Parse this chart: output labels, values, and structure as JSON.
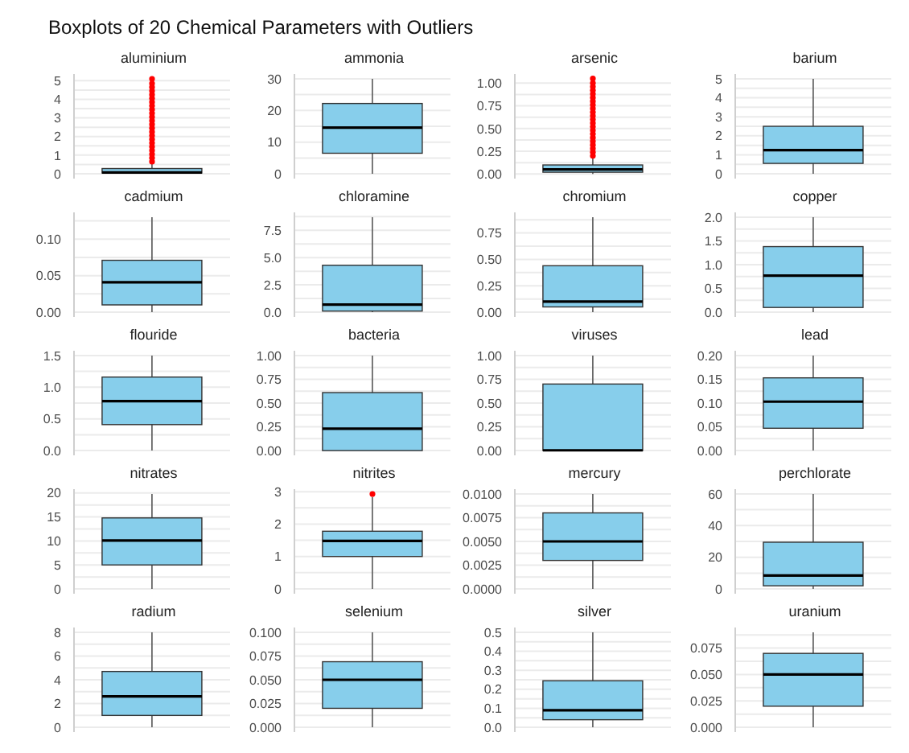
{
  "chart_data": [
    {
      "type": "other",
      "title": "Boxplots of 20 Chemical Parameters with Outliers"
    },
    {
      "type": "box",
      "title": "aluminium",
      "categories": [
        null
      ],
      "series": [
        {
          "color": "#87ceeb",
          "boxes": [
            {
              "low": 0,
              "q1": 0.04,
              "median": 0.07,
              "q3": 0.28,
              "high": 0.6,
              "outliers": [
                0.65,
                0.85,
                1.05,
                1.25,
                1.45,
                1.65,
                1.85,
                2.05,
                2.25,
                2.45,
                2.65,
                2.85,
                3.05,
                3.25,
                3.45,
                3.65,
                3.85,
                4.05,
                4.25,
                4.45,
                4.65,
                4.85,
                5.1
              ]
            }
          ]
        }
      ],
      "ylim": [
        -0.26,
        5.36
      ],
      "yticks": [
        0,
        {
          "value": 0.5,
          "label": null
        },
        1,
        {
          "value": 1.5,
          "label": null
        },
        2,
        {
          "value": 2.5,
          "label": null
        },
        3,
        {
          "value": 3.5,
          "label": null
        },
        4,
        {
          "value": 4.5,
          "label": null
        },
        5
      ],
      "grid": "y"
    },
    {
      "type": "box",
      "title": "ammonia",
      "categories": [
        null
      ],
      "series": [
        {
          "color": "#87ceeb",
          "boxes": [
            {
              "low": 0,
              "q1": 6.5,
              "median": 14.6,
              "q3": 22.2,
              "high": 30
            }
          ]
        }
      ],
      "ylim": [
        -1.5,
        31.5
      ],
      "yticks": [
        0,
        {
          "value": 5,
          "label": null
        },
        10,
        {
          "value": 15,
          "label": null
        },
        20,
        {
          "value": 25,
          "label": null
        },
        30
      ],
      "grid": "y"
    },
    {
      "type": "box",
      "title": "arsenic",
      "categories": [
        null
      ],
      "series": [
        {
          "color": "#87ceeb",
          "boxes": [
            {
              "low": 0,
              "q1": 0.02,
              "median": 0.05,
              "q3": 0.1,
              "high": 0.18,
              "outliers": [
                0.2,
                0.24,
                0.28,
                0.32,
                0.36,
                0.4,
                0.44,
                0.48,
                0.52,
                0.56,
                0.6,
                0.64,
                0.68,
                0.72,
                0.76,
                0.8,
                0.84,
                0.88,
                0.92,
                0.96,
                1.0,
                1.05
              ]
            }
          ]
        }
      ],
      "ylim": [
        -0.05,
        1.1
      ],
      "yticks": [
        {
          "value": 0,
          "label": "0.00"
        },
        {
          "value": 0.125,
          "label": null
        },
        0.25,
        {
          "value": 0.375,
          "label": null
        },
        {
          "value": 0.5,
          "label": "0.50"
        },
        {
          "value": 0.625,
          "label": null
        },
        0.75,
        {
          "value": 0.875,
          "label": null
        },
        {
          "value": 1,
          "label": "1.00"
        }
      ],
      "grid": "y"
    },
    {
      "type": "box",
      "title": "barium",
      "categories": [
        null
      ],
      "series": [
        {
          "color": "#87ceeb",
          "boxes": [
            {
              "low": 0,
              "q1": 0.55,
              "median": 1.25,
              "q3": 2.5,
              "high": 5
            }
          ]
        }
      ],
      "ylim": [
        -0.25,
        5.25
      ],
      "yticks": [
        0,
        {
          "value": 0.5,
          "label": null
        },
        1,
        {
          "value": 1.5,
          "label": null
        },
        2,
        {
          "value": 2.5,
          "label": null
        },
        3,
        {
          "value": 3.5,
          "label": null
        },
        4,
        {
          "value": 4.5,
          "label": null
        },
        5
      ],
      "grid": "y"
    },
    {
      "type": "box",
      "title": "cadmium",
      "categories": [
        null
      ],
      "series": [
        {
          "color": "#87ceeb",
          "boxes": [
            {
              "low": 0,
              "q1": 0.01,
              "median": 0.041,
              "q3": 0.071,
              "high": 0.13
            }
          ]
        }
      ],
      "ylim": [
        -0.0065,
        0.1365
      ],
      "yticks": [
        {
          "value": 0,
          "label": "0.00"
        },
        {
          "value": 0.025,
          "label": null
        },
        0.05,
        {
          "value": 0.075,
          "label": null
        },
        {
          "value": 0.1,
          "label": "0.10"
        },
        {
          "value": 0.125,
          "label": null
        }
      ],
      "grid": "y"
    },
    {
      "type": "box",
      "title": "chloramine",
      "categories": [
        null
      ],
      "series": [
        {
          "color": "#87ceeb",
          "boxes": [
            {
              "low": 0,
              "q1": 0.1,
              "median": 0.7,
              "q3": 4.3,
              "high": 8.7
            }
          ]
        }
      ],
      "ylim": [
        -0.44,
        9.14
      ],
      "yticks": [
        {
          "value": 0,
          "label": "0.0"
        },
        {
          "value": 1.25,
          "label": null
        },
        2.5,
        {
          "value": 3.75,
          "label": null
        },
        {
          "value": 5,
          "label": "5.0"
        },
        {
          "value": 6.25,
          "label": null
        },
        7.5,
        {
          "value": 8.75,
          "label": null
        }
      ],
      "grid": "y"
    },
    {
      "type": "box",
      "title": "chromium",
      "categories": [
        null
      ],
      "series": [
        {
          "color": "#87ceeb",
          "boxes": [
            {
              "low": 0,
              "q1": 0.05,
              "median": 0.1,
              "q3": 0.44,
              "high": 0.9
            }
          ]
        }
      ],
      "ylim": [
        -0.045,
        0.945
      ],
      "yticks": [
        {
          "value": 0,
          "label": "0.00"
        },
        {
          "value": 0.125,
          "label": null
        },
        0.25,
        {
          "value": 0.375,
          "label": null
        },
        {
          "value": 0.5,
          "label": "0.50"
        },
        {
          "value": 0.625,
          "label": null
        },
        0.75,
        {
          "value": 0.875,
          "label": null
        }
      ],
      "grid": "y"
    },
    {
      "type": "box",
      "title": "copper",
      "categories": [
        null
      ],
      "series": [
        {
          "color": "#87ceeb",
          "boxes": [
            {
              "low": 0,
              "q1": 0.1,
              "median": 0.77,
              "q3": 1.38,
              "high": 2.0
            }
          ]
        }
      ],
      "ylim": [
        -0.1,
        2.1
      ],
      "yticks": [
        {
          "value": 0,
          "label": "0.0"
        },
        {
          "value": 0.25,
          "label": null
        },
        0.5,
        {
          "value": 0.75,
          "label": null
        },
        {
          "value": 1,
          "label": "1.0"
        },
        {
          "value": 1.25,
          "label": null
        },
        1.5,
        {
          "value": 1.75,
          "label": null
        },
        {
          "value": 2,
          "label": "2.0"
        }
      ],
      "grid": "y"
    },
    {
      "type": "box",
      "title": "flouride",
      "categories": [
        null
      ],
      "series": [
        {
          "color": "#87ceeb",
          "boxes": [
            {
              "low": 0,
              "q1": 0.41,
              "median": 0.78,
              "q3": 1.16,
              "high": 1.5
            }
          ]
        }
      ],
      "ylim": [
        -0.075,
        1.575
      ],
      "yticks": [
        {
          "value": 0,
          "label": "0.0"
        },
        {
          "value": 0.25,
          "label": null
        },
        0.5,
        {
          "value": 0.75,
          "label": null
        },
        {
          "value": 1,
          "label": "1.0"
        },
        {
          "value": 1.25,
          "label": null
        },
        1.5
      ],
      "grid": "y"
    },
    {
      "type": "box",
      "title": "bacteria",
      "categories": [
        null
      ],
      "series": [
        {
          "color": "#87ceeb",
          "boxes": [
            {
              "low": 0,
              "q1": 0,
              "median": 0.23,
              "q3": 0.61,
              "high": 1.0
            }
          ]
        }
      ],
      "ylim": [
        -0.05,
        1.05
      ],
      "yticks": [
        {
          "value": 0,
          "label": "0.00"
        },
        {
          "value": 0.125,
          "label": null
        },
        0.25,
        {
          "value": 0.375,
          "label": null
        },
        {
          "value": 0.5,
          "label": "0.50"
        },
        {
          "value": 0.625,
          "label": null
        },
        0.75,
        {
          "value": 0.875,
          "label": null
        },
        {
          "value": 1,
          "label": "1.00"
        }
      ],
      "grid": "y"
    },
    {
      "type": "box",
      "title": "viruses",
      "categories": [
        null
      ],
      "series": [
        {
          "color": "#87ceeb",
          "boxes": [
            {
              "low": 0,
              "q1": 0,
              "median": 0.003,
              "q3": 0.7,
              "high": 1.0
            }
          ]
        }
      ],
      "ylim": [
        -0.05,
        1.05
      ],
      "yticks": [
        {
          "value": 0,
          "label": "0.00"
        },
        {
          "value": 0.125,
          "label": null
        },
        0.25,
        {
          "value": 0.375,
          "label": null
        },
        {
          "value": 0.5,
          "label": "0.50"
        },
        {
          "value": 0.625,
          "label": null
        },
        0.75,
        {
          "value": 0.875,
          "label": null
        },
        {
          "value": 1,
          "label": "1.00"
        }
      ],
      "grid": "y"
    },
    {
      "type": "box",
      "title": "lead",
      "categories": [
        null
      ],
      "series": [
        {
          "color": "#87ceeb",
          "boxes": [
            {
              "low": 0,
              "q1": 0.047,
              "median": 0.103,
              "q3": 0.153,
              "high": 0.2
            }
          ]
        }
      ],
      "ylim": [
        -0.01,
        0.21
      ],
      "yticks": [
        {
          "value": 0,
          "label": "0.00"
        },
        {
          "value": 0.025,
          "label": null
        },
        0.05,
        {
          "value": 0.075,
          "label": null
        },
        {
          "value": 0.1,
          "label": "0.10"
        },
        {
          "value": 0.125,
          "label": null
        },
        0.15,
        {
          "value": 0.175,
          "label": null
        },
        {
          "value": 0.2,
          "label": "0.20"
        }
      ],
      "grid": "y"
    },
    {
      "type": "box",
      "title": "nitrates",
      "categories": [
        null
      ],
      "series": [
        {
          "color": "#87ceeb",
          "boxes": [
            {
              "low": 0,
              "q1": 5,
              "median": 10.1,
              "q3": 14.8,
              "high": 19.8
            }
          ]
        }
      ],
      "ylim": [
        -1,
        20.8
      ],
      "yticks": [
        0,
        {
          "value": 2.5,
          "label": null
        },
        5,
        {
          "value": 7.5,
          "label": null
        },
        10,
        {
          "value": 12.5,
          "label": null
        },
        15,
        {
          "value": 17.5,
          "label": null
        },
        20
      ],
      "grid": "y"
    },
    {
      "type": "box",
      "title": "nitrites",
      "categories": [
        null
      ],
      "series": [
        {
          "color": "#87ceeb",
          "boxes": [
            {
              "low": 0,
              "q1": 1.0,
              "median": 1.48,
              "q3": 1.78,
              "high": 2.83,
              "outliers": [
                2.93
              ]
            }
          ]
        }
      ],
      "ylim": [
        -0.15,
        3.08
      ],
      "yticks": [
        0,
        {
          "value": 0.5,
          "label": null
        },
        1,
        {
          "value": 1.5,
          "label": null
        },
        2,
        {
          "value": 2.5,
          "label": null
        },
        3
      ],
      "grid": "y"
    },
    {
      "type": "box",
      "title": "mercury",
      "categories": [
        null
      ],
      "series": [
        {
          "color": "#87ceeb",
          "boxes": [
            {
              "low": 0,
              "q1": 0.003,
              "median": 0.005,
              "q3": 0.008,
              "high": 0.01
            }
          ]
        }
      ],
      "ylim": [
        -0.0005,
        0.0105
      ],
      "yticks": [
        {
          "value": 0,
          "label": "0.0000"
        },
        {
          "value": 0.00125,
          "label": null
        },
        0.0025,
        {
          "value": 0.00375,
          "label": null
        },
        {
          "value": 0.005,
          "label": "0.0050"
        },
        {
          "value": 0.00625,
          "label": null
        },
        0.0075,
        {
          "value": 0.00875,
          "label": null
        },
        {
          "value": 0.01,
          "label": "0.0100"
        }
      ],
      "grid": "y"
    },
    {
      "type": "box",
      "title": "perchlorate",
      "categories": [
        null
      ],
      "series": [
        {
          "color": "#87ceeb",
          "boxes": [
            {
              "low": 0,
              "q1": 2,
              "median": 8.5,
              "q3": 29.5,
              "high": 60
            }
          ]
        }
      ],
      "ylim": [
        -3,
        63
      ],
      "yticks": [
        0,
        {
          "value": 10,
          "label": null
        },
        20,
        {
          "value": 30,
          "label": null
        },
        40,
        {
          "value": 50,
          "label": null
        },
        60
      ],
      "grid": "y"
    },
    {
      "type": "box",
      "title": "radium",
      "categories": [
        null
      ],
      "series": [
        {
          "color": "#87ceeb",
          "boxes": [
            {
              "low": 0,
              "q1": 1.0,
              "median": 2.6,
              "q3": 4.7,
              "high": 8
            }
          ]
        }
      ],
      "ylim": [
        -0.4,
        8.4
      ],
      "yticks": [
        0,
        {
          "value": 1,
          "label": null
        },
        2,
        {
          "value": 3,
          "label": null
        },
        4,
        {
          "value": 5,
          "label": null
        },
        6,
        {
          "value": 7,
          "label": null
        },
        8
      ],
      "grid": "y"
    },
    {
      "type": "box",
      "title": "selenium",
      "categories": [
        null
      ],
      "series": [
        {
          "color": "#87ceeb",
          "boxes": [
            {
              "low": 0,
              "q1": 0.02,
              "median": 0.05,
              "q3": 0.069,
              "high": 0.1
            }
          ]
        }
      ],
      "ylim": [
        -0.005,
        0.105
      ],
      "yticks": [
        {
          "value": 0,
          "label": "0.000"
        },
        {
          "value": 0.0125,
          "label": null
        },
        0.025,
        {
          "value": 0.0375,
          "label": null
        },
        {
          "value": 0.05,
          "label": "0.050"
        },
        {
          "value": 0.0625,
          "label": null
        },
        0.075,
        {
          "value": 0.0875,
          "label": null
        },
        {
          "value": 0.1,
          "label": "0.100"
        }
      ],
      "grid": "y"
    },
    {
      "type": "box",
      "title": "silver",
      "categories": [
        null
      ],
      "series": [
        {
          "color": "#87ceeb",
          "boxes": [
            {
              "low": 0,
              "q1": 0.04,
              "median": 0.09,
              "q3": 0.245,
              "high": 0.5
            }
          ]
        }
      ],
      "ylim": [
        -0.025,
        0.525
      ],
      "yticks": [
        {
          "value": 0,
          "label": "0.0"
        },
        {
          "value": 0.05,
          "label": null
        },
        0.1,
        {
          "value": 0.15,
          "label": null
        },
        0.2,
        {
          "value": 0.25,
          "label": null
        },
        0.3,
        {
          "value": 0.35,
          "label": null
        },
        0.4,
        {
          "value": 0.45,
          "label": null
        },
        0.5
      ],
      "grid": "y"
    },
    {
      "type": "box",
      "title": "uranium",
      "categories": [
        null
      ],
      "series": [
        {
          "color": "#87ceeb",
          "boxes": [
            {
              "low": 0,
              "q1": 0.02,
              "median": 0.05,
              "q3": 0.07,
              "high": 0.09
            }
          ]
        }
      ],
      "ylim": [
        -0.0045,
        0.0945
      ],
      "yticks": [
        {
          "value": 0,
          "label": "0.000"
        },
        {
          "value": 0.0125,
          "label": null
        },
        0.025,
        {
          "value": 0.0375,
          "label": null
        },
        {
          "value": 0.05,
          "label": "0.050"
        },
        {
          "value": 0.0625,
          "label": null
        },
        0.075,
        {
          "value": 0.0875,
          "label": null
        }
      ],
      "grid": "y"
    }
  ]
}
